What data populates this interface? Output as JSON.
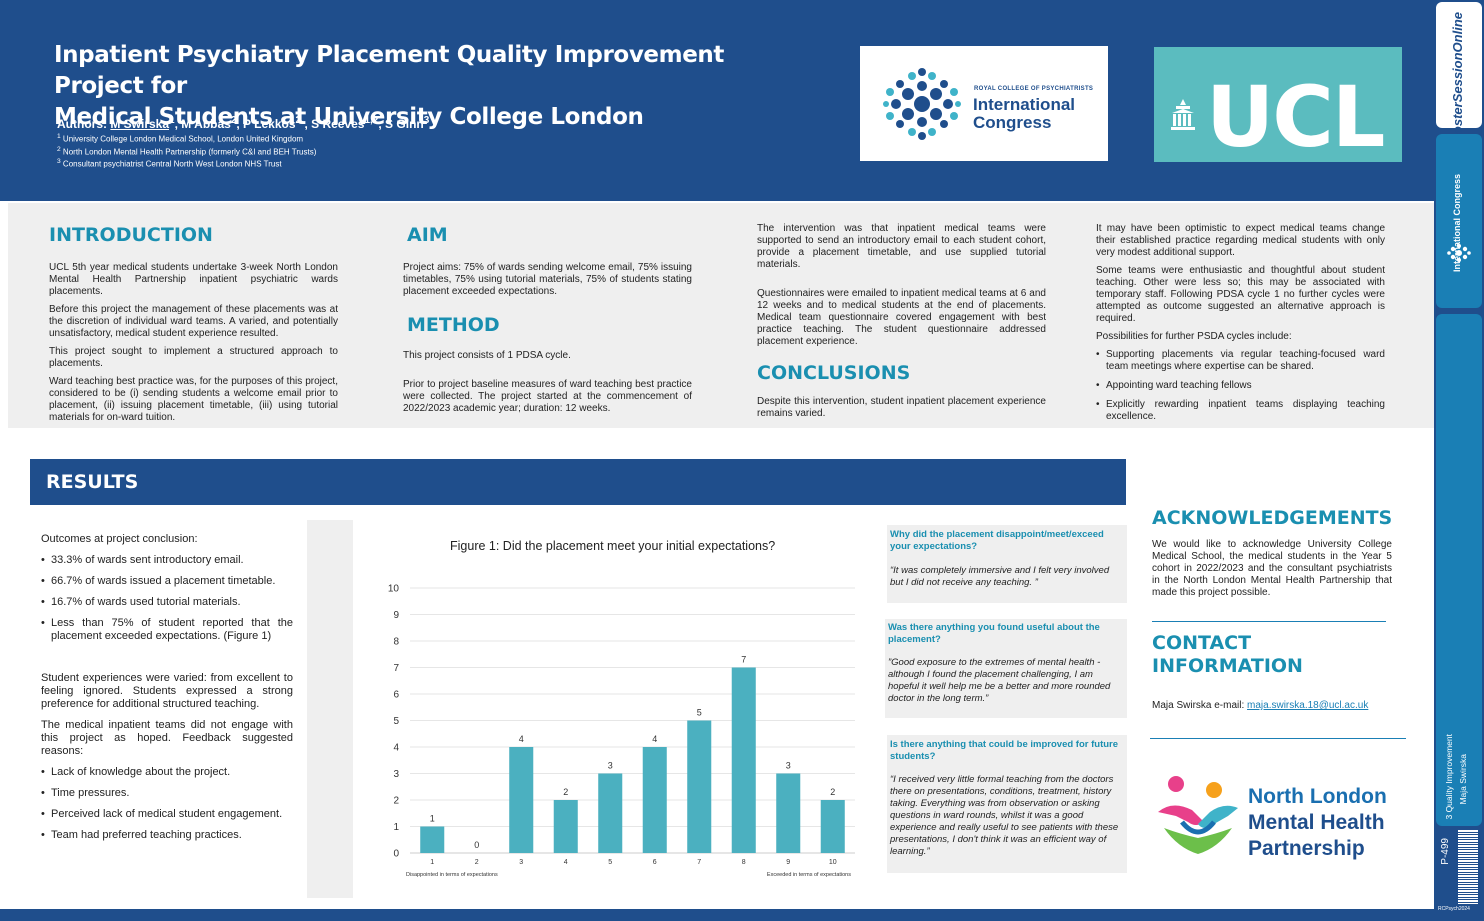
{
  "header": {
    "title_line1": "Inpatient Psychiatry Placement Quality Improvement Project for",
    "title_line2": "Medical Students at University College London",
    "authors_prefix": "Authors: ",
    "author1": "M Swirska",
    "author1_sup": "1",
    "author2": ", M Abbas",
    "author2_sup": "2",
    "author3": ", P Lekkos",
    "author3_sup": "2",
    "author4": " , S Reeves",
    "author4_sup": "1,2",
    "author5": ", S Ginn",
    "author5_sup": "3",
    "affiliations": [
      {
        "sup": "1",
        "text": " University College London Medical School, London United Kingdom"
      },
      {
        "sup": "2",
        "text": " North London Mental Health Partnership (formerly C&I and BEH Trusts)"
      },
      {
        "sup": "3",
        "text": " Consultant psychiatrist Central North West London NHS Trust"
      }
    ]
  },
  "logos": {
    "rcp_small": "ROYAL COLLEGE OF PSYCHIATRISTS",
    "rcp_line1": "International",
    "rcp_line2": "Congress",
    "ucl": "UCL",
    "nlmh_line1": "North London",
    "nlmh_line2": "Mental Health",
    "nlmh_line3": "Partnership"
  },
  "side": {
    "brand1": "PosterSessionOnline",
    "brand2": "International Congress",
    "track": "3 Quality Improvement",
    "presenter": "Maja Swirska",
    "poster_id": "P-499",
    "code": "RCPsych2024"
  },
  "introduction": {
    "heading": "INTRODUCTION",
    "paragraphs": [
      "UCL 5th year medical students undertake 3-week North London Mental Health Partnership inpatient psychiatric wards placements.",
      "Before this project the management of these placements was at the discretion of individual ward teams.  A varied, and potentially unsatisfactory, medical student experience resulted.",
      "This project sought to implement a structured approach to placements.",
      "Ward teaching best practice was, for the purposes of this project, considered to be (i) sending students a welcome email prior to placement, (ii) issuing placement timetable, (iii) using tutorial materials for on-ward tuition."
    ]
  },
  "aim": {
    "heading": "AIM",
    "text": "Project aims: 75% of wards sending welcome email, 75% issuing timetables, 75% using tutorial materials, 75% of students stating placement exceeded expectations."
  },
  "method": {
    "heading": "METHOD",
    "p1": "This project consists of 1 PDSA cycle.",
    "p2": "Prior to project baseline measures of ward teaching best practice were collected. The project started at the commencement of 2022/2023 academic year; duration: 12 weeks."
  },
  "method_cont": {
    "p1": " The intervention was that inpatient medical teams were supported to send an introductory email to each student cohort, provide a placement timetable, and use supplied tutorial materials.",
    "p2": "Questionnaires were emailed to inpatient medical teams at 6 and 12 weeks and to medical students at the end of placements.  Medical team questionnaire covered engagement with best practice teaching. The student questionnaire addressed placement experience."
  },
  "conclusions": {
    "heading": "CONCLUSIONS",
    "text": "Despite this intervention, student inpatient placement experience remains varied."
  },
  "discussion": {
    "p1": "It may have been optimistic to expect medical teams change their established practice regarding medical students with only very modest additional support.",
    "p2": "Some teams were enthusiastic and thoughtful about student teaching.  Other were less so; this may be associated with temporary staff.  Following PDSA cycle 1 no further cycles were attempted as outcome suggested an alternative approach is required.",
    "p3": "Possibilities for further PSDA cycles include:",
    "bullets": [
      "Supporting placements via regular teaching-focused ward team meetings where expertise can be shared.",
      "Appointing ward teaching fellows",
      "Explicitly rewarding inpatient teams displaying teaching excellence."
    ]
  },
  "results": {
    "heading": "RESULTS",
    "intro": "Outcomes at project conclusion:",
    "outcomes": [
      "33.3% of wards sent introductory email.",
      "66.7% of wards issued a placement timetable.",
      "16.7% of wards used tutorial materials.",
      "Less than 75% of student reported that the placement exceeded expectations. (Figure 1)"
    ],
    "p1": "Student experiences were varied: from excellent to feeling ignored. Students expressed a strong preference for additional structured teaching.",
    "p2": "The medical inpatient teams did not engage with this project as hoped.  Feedback suggested reasons:",
    "reasons": [
      "Lack of knowledge about the project.",
      "Time pressures.",
      "Perceived lack of medical student engagement.",
      "Team had preferred teaching practices."
    ]
  },
  "chart_data": {
    "type": "bar",
    "title": "Figure 1: Did the placement meet your initial expectations?",
    "categories": [
      "1",
      "2",
      "3",
      "4",
      "5",
      "6",
      "7",
      "8",
      "9",
      "10"
    ],
    "values": [
      1,
      0,
      4,
      2,
      3,
      4,
      5,
      7,
      3,
      2
    ],
    "ylim": [
      0,
      10
    ],
    "yticks": [
      "0",
      "1",
      "2",
      "3",
      "4",
      "5",
      "6",
      "7",
      "8",
      "9",
      "10"
    ],
    "x_left_label": "Disappointed in terms of expectations",
    "x_right_label": "Exceeded in terms of expectations",
    "bar_color": "#4bb0c0",
    "grid": true
  },
  "quotes": [
    {
      "q": "Why did the placement disappoint/meet/exceed your expectations?",
      "a": "“It was completely immersive and I felt very involved but I did not receive any teaching. ”"
    },
    {
      "q": "Was there anything you found useful about the placement?",
      "a": "”Good exposure to the extremes of mental health - although I found the placement challenging, I am hopeful it well help me be a better and more rounded doctor in the long term.”"
    },
    {
      "q": " Is there anything that could be improved for future students?",
      "a": "“I received very little formal teaching from the doctors there on presentations, conditions, treatment, history taking. Everything was from observation or asking questions in ward rounds, whilst it was a good experience and really useful to see patients with these presentations, I don't think it was an efficient way of learning.”"
    }
  ],
  "acknowledgements": {
    "heading": "ACKNOWLEDGEMENTS",
    "text": "We would like to acknowledge University College Medical School, the medical students in the Year 5 cohort in 2022/2023 and the consultant psychiatrists in the North London Mental Health Partnership that made this project possible."
  },
  "contact": {
    "heading": "CONTACT INFORMATION",
    "name": "Maja Swirska  e-mail: ",
    "email": "maja.swirska.18@ucl.ac.uk"
  }
}
